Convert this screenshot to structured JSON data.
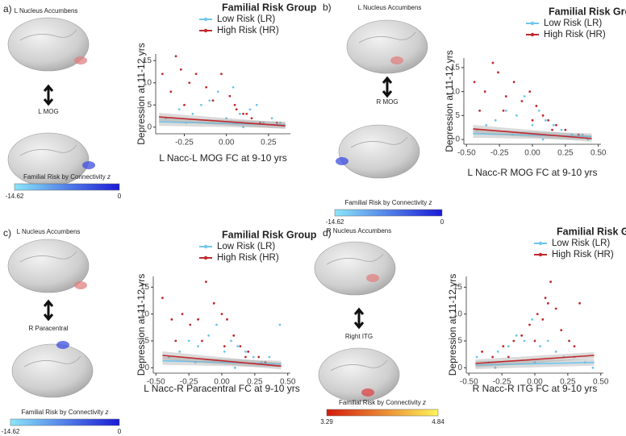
{
  "chart_data": [
    {
      "type": "scatter",
      "panel": "a)",
      "title": "Familial Risk Group",
      "regions": [
        "L Nucleus Accumbens",
        "L MOG"
      ],
      "colorbar_title": "Familial Risk by Connectivity",
      "colorbar_symbol": "z",
      "colorbar_range": [
        -14.62,
        0
      ],
      "colorbar_colors": [
        "#8ae6fa",
        "#1a1ad6"
      ],
      "xlabel": "L Nacc-L MOG FC at 9-10 yrs",
      "ylabel": "Depression at 11-12 yrs",
      "xlim": [
        -0.42,
        0.38
      ],
      "xticks": [
        -0.25,
        {
          "value": 0,
          "label": "0.00"
        },
        0.25
      ],
      "ylim": [
        -1.5,
        16.5
      ],
      "yticks": [
        0,
        5,
        10,
        15
      ],
      "fit_x": [
        -0.4,
        0.35
      ],
      "series": [
        {
          "name": "Low Risk (LR)",
          "color": "#6ec6ef",
          "x": [
            -0.36,
            -0.28,
            -0.2,
            -0.15,
            -0.1,
            -0.05,
            0,
            0.04,
            0.08,
            0.14,
            0.18,
            0.22,
            0.27,
            0.32,
            -0.24,
            0.1
          ],
          "y": [
            2,
            4,
            3,
            5,
            6,
            8,
            2,
            9,
            3,
            4,
            5,
            1,
            2,
            1,
            1,
            0
          ],
          "fit_y": [
            1.2,
            0.5
          ]
        },
        {
          "name": "High Risk (HR)",
          "color": "#c0282d",
          "x": [
            -0.38,
            -0.3,
            -0.27,
            -0.22,
            -0.18,
            -0.12,
            -0.08,
            -0.03,
            0.02,
            0.06,
            0.1,
            0.15,
            0.2,
            -0.33,
            -0.25,
            0.05,
            0.12,
            0.3
          ],
          "y": [
            12,
            16,
            13,
            10,
            12,
            9,
            6,
            12,
            7,
            4,
            3,
            2,
            1,
            8,
            5,
            5,
            3,
            1
          ],
          "fit_y": [
            2.3,
            0.3
          ]
        }
      ]
    },
    {
      "type": "scatter",
      "panel": "b)",
      "title": "Familial Risk Group",
      "regions": [
        "L Nucleus Accumbens",
        "R MOG"
      ],
      "colorbar_title": "Familial Risk by Connectivity",
      "colorbar_symbol": "z",
      "colorbar_range": [
        -14.62,
        0
      ],
      "colorbar_colors": [
        "#8ae6fa",
        "#1a1ad6"
      ],
      "xlabel": "L Nacc-R MOG FC at 9-10 yrs",
      "ylabel": "Depression at 11-12 yrs",
      "xlim": [
        -0.52,
        0.52
      ],
      "xticks": [
        {
          "value": -0.5,
          "label": "-0.50"
        },
        -0.25,
        {
          "value": 0,
          "label": "0.00"
        },
        0.25,
        {
          "value": 0.5,
          "label": "0.50"
        }
      ],
      "ylim": [
        -1,
        17
      ],
      "yticks": [
        0,
        5,
        10,
        15
      ],
      "fit_x": [
        -0.45,
        0.45
      ],
      "series": [
        {
          "name": "Low Risk (LR)",
          "color": "#6ec6ef",
          "x": [
            -0.42,
            -0.35,
            -0.28,
            -0.2,
            -0.12,
            -0.06,
            0,
            0.05,
            0.1,
            0.16,
            0.22,
            0.3,
            0.38,
            -0.15,
            0.08,
            0.42
          ],
          "y": [
            2,
            3,
            4,
            6,
            5,
            9,
            3,
            6,
            4,
            3,
            2,
            1,
            1,
            1,
            0,
            0
          ],
          "fit_y": [
            1.2,
            0.6
          ]
        },
        {
          "name": "High Risk (HR)",
          "color": "#c0282d",
          "x": [
            -0.44,
            -0.36,
            -0.3,
            -0.26,
            -0.2,
            -0.14,
            -0.08,
            -0.02,
            0.03,
            0.08,
            0.12,
            0.18,
            0.25,
            -0.4,
            -0.22,
            0.0,
            0.15,
            0.35
          ],
          "y": [
            12,
            10,
            16,
            14,
            9,
            12,
            8,
            10,
            7,
            5,
            4,
            3,
            2,
            6,
            6,
            4,
            2,
            1
          ],
          "fit_y": [
            2.2,
            0.2
          ]
        }
      ]
    },
    {
      "type": "scatter",
      "panel": "c)",
      "title": "Familial Risk Group",
      "regions": [
        "L Nucleus Accumbens",
        "R Paracentral"
      ],
      "colorbar_title": "Familial Risk by Connectivity",
      "colorbar_symbol": "z",
      "colorbar_range": [
        -14.62,
        0
      ],
      "colorbar_colors": [
        "#8ae6fa",
        "#1a1ad6"
      ],
      "xlabel": "L Nacc-R Paracentral FC at 9-10 yrs",
      "ylabel": "Depression at 11-12 yrs",
      "xlim": [
        -0.52,
        0.52
      ],
      "xticks": [
        {
          "value": -0.5,
          "label": "-0.50"
        },
        -0.25,
        {
          "value": 0,
          "label": "0.00"
        },
        0.25,
        {
          "value": 0.5,
          "label": "0.50"
        }
      ],
      "ylim": [
        -1,
        17
      ],
      "yticks": [
        0,
        5,
        10,
        15
      ],
      "fit_x": [
        -0.45,
        0.45
      ],
      "series": [
        {
          "name": "Low Risk (LR)",
          "color": "#6ec6ef",
          "x": [
            -0.4,
            -0.32,
            -0.25,
            -0.18,
            -0.1,
            -0.04,
            0.02,
            0.07,
            0.12,
            0.18,
            0.24,
            0.3,
            0.36,
            0.44,
            -0.2,
            0.1
          ],
          "y": [
            2,
            3,
            5,
            4,
            6,
            8,
            3,
            5,
            4,
            3,
            2,
            1,
            2,
            8,
            1,
            0
          ],
          "fit_y": [
            1.3,
            0.7
          ]
        },
        {
          "name": "High Risk (HR)",
          "color": "#c0282d",
          "x": [
            -0.45,
            -0.38,
            -0.3,
            -0.24,
            -0.18,
            -0.12,
            -0.06,
            0,
            0.04,
            0.09,
            0.14,
            0.2,
            0.28,
            -0.35,
            -0.15,
            0.02,
            0.18,
            0.33
          ],
          "y": [
            13,
            9,
            10,
            8,
            9,
            16,
            12,
            10,
            9,
            6,
            4,
            3,
            2,
            5,
            5,
            4,
            2,
            1
          ],
          "fit_y": [
            2.3,
            0.3
          ]
        }
      ]
    },
    {
      "type": "scatter",
      "panel": "d)",
      "title": "Familial Risk Group",
      "regions": [
        "R Nucleus Accumbens",
        "Right ITG"
      ],
      "colorbar_title": "Familial Risk by Connectivity",
      "colorbar_symbol": "z",
      "colorbar_range": [
        3.29,
        4.84
      ],
      "colorbar_colors": [
        "#d41a0c",
        "#fff55a"
      ],
      "xlabel": "R Nacc-R ITG FC at 9-10 yrs",
      "ylabel": "Depression at 11-12 yrs",
      "xlim": [
        -0.52,
        0.52
      ],
      "xticks": [
        {
          "value": -0.5,
          "label": "-0.50"
        },
        -0.25,
        {
          "value": 0,
          "label": "0.00"
        },
        0.25,
        {
          "value": 0.5,
          "label": "0.50"
        }
      ],
      "ylim": [
        -1,
        17
      ],
      "yticks": [
        0,
        5,
        10,
        15
      ],
      "fit_x": [
        -0.45,
        0.45
      ],
      "series": [
        {
          "name": "Low Risk (LR)",
          "color": "#6ec6ef",
          "x": [
            -0.44,
            -0.35,
            -0.28,
            -0.2,
            -0.14,
            -0.08,
            -0.02,
            0.04,
            0.1,
            0.16,
            0.22,
            0.3,
            0.38,
            -0.3,
            0.0,
            0.44
          ],
          "y": [
            2,
            1,
            3,
            4,
            6,
            5,
            9,
            4,
            5,
            3,
            2,
            2,
            1,
            0,
            1,
            0
          ],
          "fit_y": [
            0.5,
            1.0
          ]
        },
        {
          "name": "High Risk (HR)",
          "color": "#c0282d",
          "x": [
            -0.4,
            -0.32,
            -0.24,
            -0.16,
            -0.1,
            -0.04,
            0.02,
            0.06,
            0.1,
            0.12,
            0.16,
            0.2,
            0.26,
            0.34,
            -0.2,
            0.0,
            0.08,
            0.3
          ],
          "y": [
            3,
            2,
            4,
            5,
            6,
            8,
            10,
            9,
            12,
            16,
            11,
            7,
            5,
            12,
            2,
            5,
            13,
            4
          ],
          "fit_y": [
            0.8,
            2.3
          ]
        }
      ]
    }
  ]
}
